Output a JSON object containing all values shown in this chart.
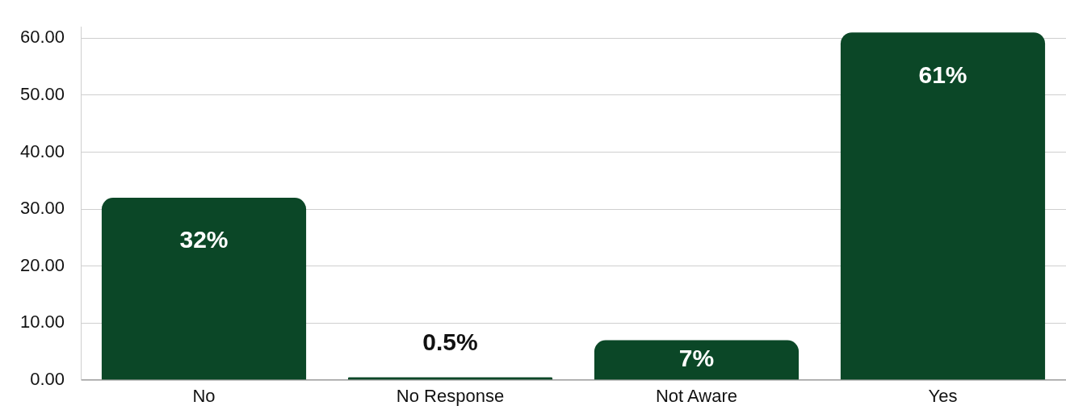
{
  "chart_data": {
    "type": "bar",
    "categories": [
      "No",
      "No Response",
      "Not Aware",
      "Yes"
    ],
    "values": [
      32,
      0.5,
      7,
      61
    ],
    "color": "#0b4727",
    "value_labels": [
      "32%",
      "0.5%",
      "7%",
      "61%"
    ],
    "ylim": [
      0,
      62
    ],
    "yticks": [
      {
        "value": 0,
        "label": "0.00"
      },
      {
        "value": 10,
        "label": "10.00"
      },
      {
        "value": 20,
        "label": "20.00"
      },
      {
        "value": 30,
        "label": "30.00"
      },
      {
        "value": 40,
        "label": "40.00"
      },
      {
        "value": 50,
        "label": "50.00"
      },
      {
        "value": 60,
        "label": "60.00"
      }
    ],
    "grid": "y"
  }
}
